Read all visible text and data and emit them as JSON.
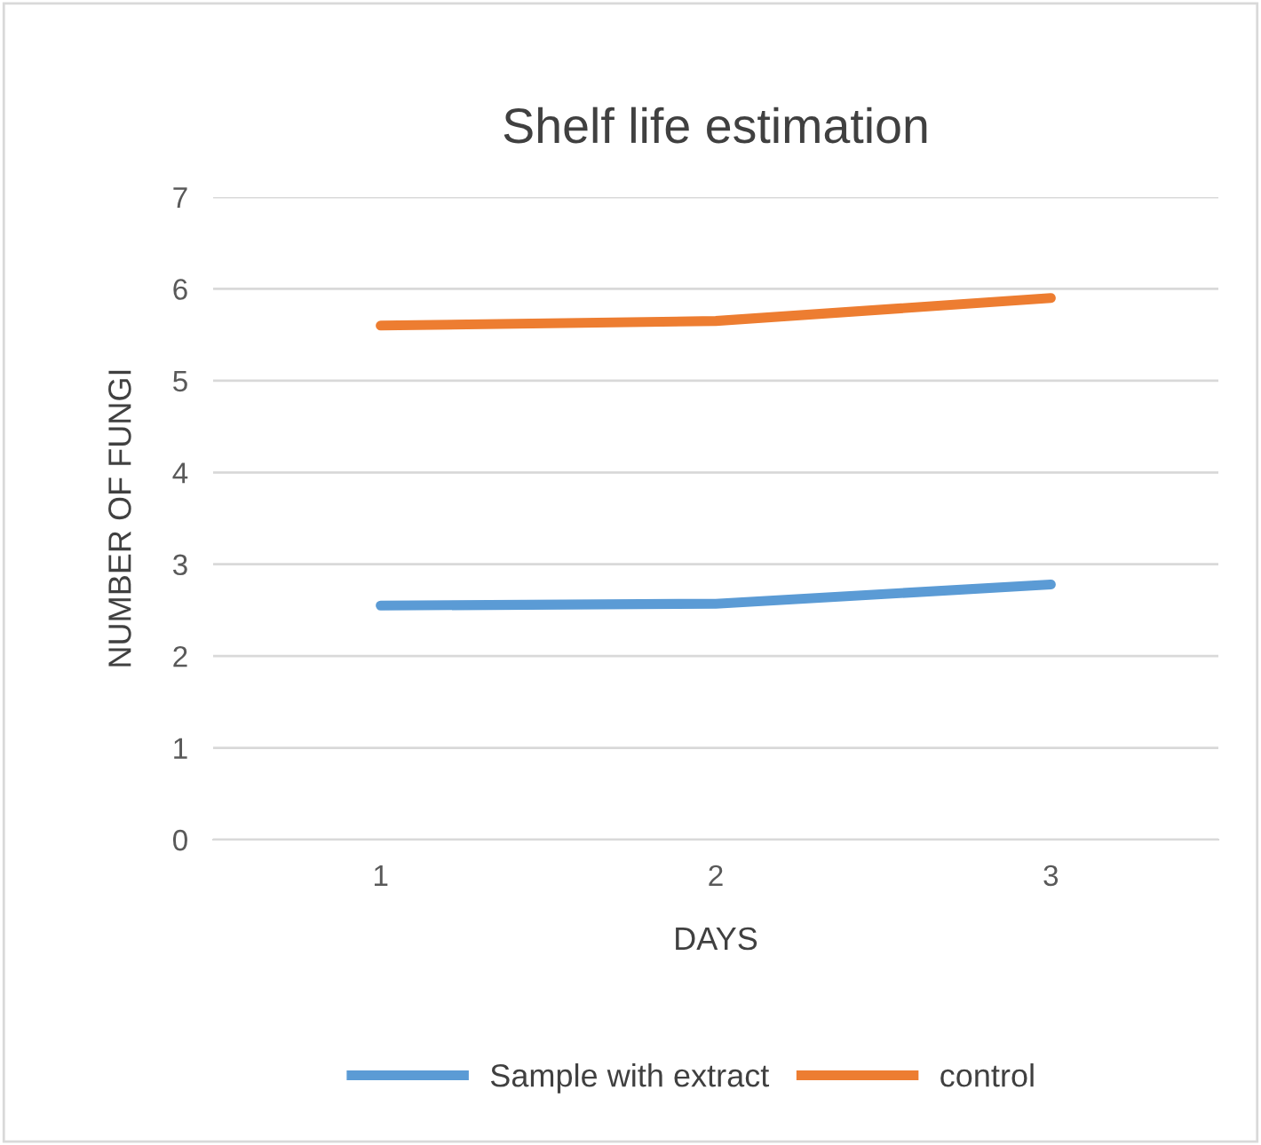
{
  "chart_data": {
    "type": "line",
    "title": "Shelf life estimation",
    "xlabel": "DAYS",
    "ylabel": "NUMBER OF FUNGI",
    "categories": [
      "1",
      "2",
      "3"
    ],
    "series": [
      {
        "name": "Sample with extract",
        "color": "#5b9bd5",
        "values": [
          2.55,
          2.57,
          2.78
        ]
      },
      {
        "name": "control",
        "color": "#ed7d31",
        "values": [
          5.6,
          5.65,
          5.9
        ]
      }
    ],
    "ylim": [
      0,
      7
    ],
    "yticks": [
      0,
      1,
      2,
      3,
      4,
      5,
      6,
      7
    ],
    "grid": "y",
    "legend": "bottom",
    "marker": "none",
    "line_style": "solid"
  }
}
